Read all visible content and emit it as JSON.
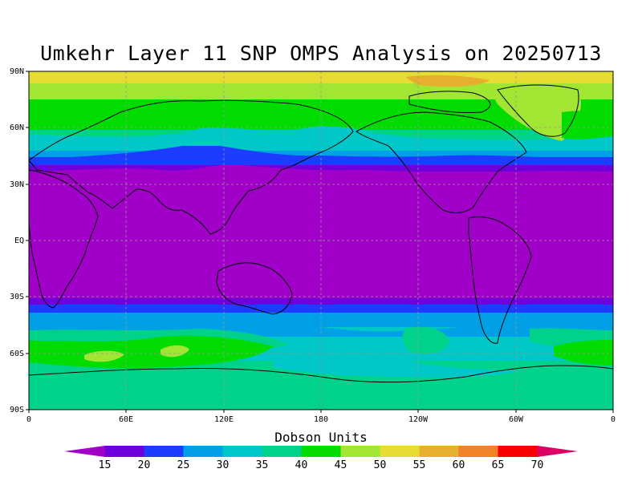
{
  "map": {
    "title": "Umkehr Layer 11 SNP OMPS Analysis on 20250713",
    "units_label": "Dobson Units",
    "lat_ticks": [
      "90N",
      "60N",
      "30N",
      "EQ",
      "30S",
      "60S",
      "90S"
    ],
    "lon_ticks": [
      "0",
      "60E",
      "120E",
      "180",
      "120W",
      "60W",
      "0"
    ],
    "colorbar_levels": [
      "15",
      "20",
      "25",
      "30",
      "35",
      "40",
      "45",
      "50",
      "55",
      "60",
      "65",
      "70"
    ],
    "colors": [
      "#a000c8",
      "#6e00dc",
      "#1e3cff",
      "#00a0e6",
      "#00c8c8",
      "#00d28c",
      "#00dc00",
      "#a0e632",
      "#e6dc32",
      "#e6af2d",
      "#f08228",
      "#fa0000",
      "#dc0064"
    ]
  }
}
